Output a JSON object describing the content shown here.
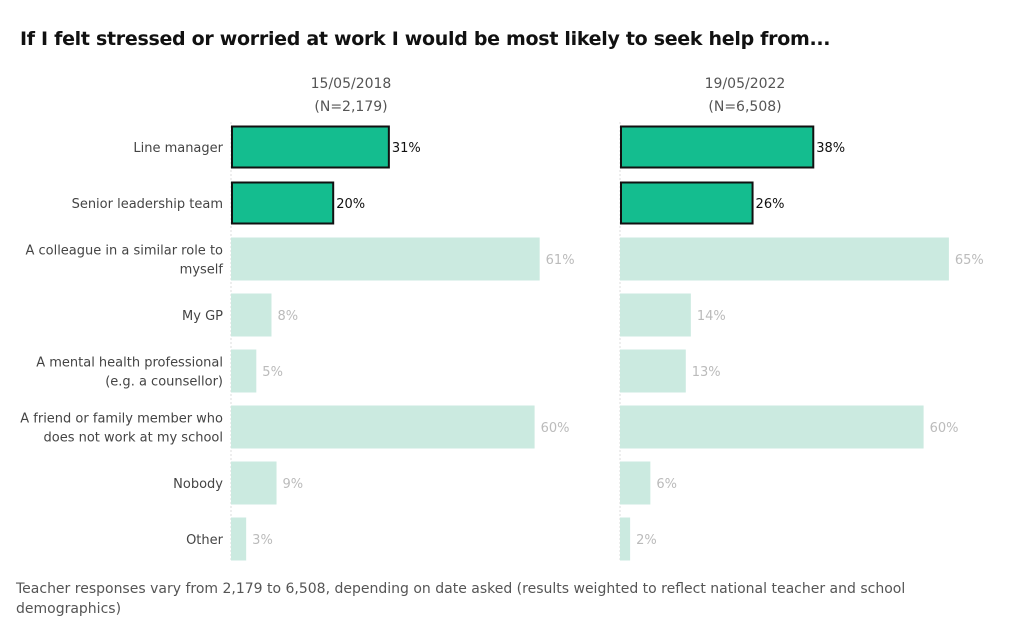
{
  "chart_data": {
    "type": "bar",
    "orientation": "horizontal",
    "title": "If I felt stressed or worried at work I would be most likely to seek help from...",
    "categories": [
      "Line manager",
      "Senior leadership team",
      "A colleague in a similar role to myself",
      "My GP",
      "A mental health professional (e.g. a counsellor)",
      "A friend or family member who does not work at my school",
      "Nobody",
      "Other"
    ],
    "category_lines": [
      [
        "Line manager"
      ],
      [
        "Senior leadership team"
      ],
      [
        "A colleague in a similar role to",
        "myself"
      ],
      [
        "My GP"
      ],
      [
        "A mental health professional",
        "(e.g. a counsellor)"
      ],
      [
        "A friend or family member who",
        "does not work at my school"
      ],
      [
        "Nobody"
      ],
      [
        "Other"
      ]
    ],
    "highlighted": [
      true,
      true,
      false,
      false,
      false,
      false,
      false,
      false
    ],
    "unit": "%",
    "series": [
      {
        "name": "15/05/2018",
        "subtitle": "(N=2,179)",
        "values": [
          31,
          20,
          61,
          8,
          5,
          60,
          9,
          3
        ]
      },
      {
        "name": "19/05/2022",
        "subtitle": "(N=6,508)",
        "values": [
          38,
          26,
          65,
          14,
          13,
          60,
          6,
          2
        ]
      }
    ],
    "xlim": [
      0,
      100
    ],
    "grid": false,
    "colors": {
      "highlight": "#14bd8f",
      "faded": "#cbeae0",
      "highlight_label": "#111111",
      "faded_label": "#bbbbbb"
    }
  },
  "footnote": "Teacher responses vary from 2,179 to 6,508, depending on date asked (results weighted to reflect national teacher and school demographics)"
}
